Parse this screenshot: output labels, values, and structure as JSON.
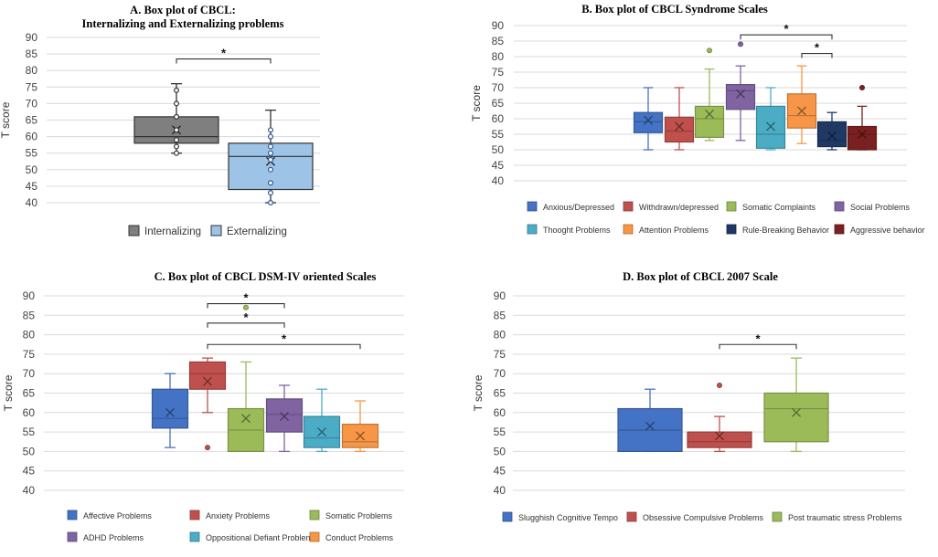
{
  "chart_data": [
    {
      "type": "box",
      "title_lines": [
        "A. Box plot of CBCL:",
        "Internalizing and Externalizing problems"
      ],
      "ylabel": "T score",
      "ylim": [
        40,
        90
      ],
      "yticks": [
        40,
        45,
        50,
        55,
        60,
        65,
        70,
        75,
        80,
        85,
        90
      ],
      "series": [
        {
          "name": "Internalizing",
          "color": "#7f7f7f",
          "whisker_color": "#333333",
          "min": 55,
          "q1": 58,
          "median": 60,
          "q3": 66,
          "max": 76,
          "mean": 62,
          "points": [
            55,
            57,
            59,
            62,
            66,
            70,
            74
          ],
          "outliers": []
        },
        {
          "name": "Externalizing",
          "color": "#9dc3e6",
          "whisker_color": "#333333",
          "min": 40,
          "q1": 44,
          "median": 54,
          "q3": 58,
          "max": 68,
          "mean": 52.5,
          "points": [
            40,
            43,
            46,
            50,
            53,
            55,
            57,
            60,
            62
          ],
          "outliers": []
        }
      ],
      "significance": [
        {
          "from": 0,
          "to": 1,
          "y": 83.5,
          "label": "*"
        }
      ]
    },
    {
      "type": "box",
      "title_lines": [
        "B. Box plot of CBCL Syndrome Scales"
      ],
      "ylabel": "T score",
      "ylim": [
        40,
        90
      ],
      "yticks": [
        40,
        45,
        50,
        55,
        60,
        65,
        70,
        75,
        80,
        85,
        90
      ],
      "series": [
        {
          "name": "Anxious/Depressed",
          "color": "#4472c4",
          "whisker_color": "#4472c4",
          "min": 50,
          "q1": 55.5,
          "median": 59,
          "q3": 62,
          "max": 70,
          "mean": 59.5,
          "points": [],
          "outliers": []
        },
        {
          "name": "Withdrawn/depressed",
          "color": "#c0504d",
          "whisker_color": "#c0504d",
          "min": 50,
          "q1": 52.5,
          "median": 56,
          "q3": 60.5,
          "max": 70,
          "mean": 57.5,
          "points": [],
          "outliers": []
        },
        {
          "name": "Somatic Complaints",
          "color": "#9bbb59",
          "whisker_color": "#9bbb59",
          "min": 53,
          "q1": 54,
          "median": 60,
          "q3": 64,
          "max": 76,
          "mean": 61.5,
          "points": [],
          "outliers": [
            82
          ]
        },
        {
          "name": "Social Problems",
          "color": "#8064a2",
          "whisker_color": "#8064a2",
          "min": 53,
          "q1": 63,
          "median": 69,
          "q3": 71,
          "max": 77,
          "mean": 68,
          "points": [],
          "outliers": [
            84
          ]
        },
        {
          "name": "Thooght Problems",
          "color": "#4bacc6",
          "whisker_color": "#4bacc6",
          "min": 50,
          "q1": 50.5,
          "median": 55,
          "q3": 64,
          "max": 70,
          "mean": 57.5,
          "points": [],
          "outliers": []
        },
        {
          "name": "Attention Problems",
          "color": "#f79646",
          "whisker_color": "#f79646",
          "min": 52,
          "q1": 57,
          "median": 61,
          "q3": 68,
          "max": 77,
          "mean": 62.5,
          "points": [],
          "outliers": []
        },
        {
          "name": "Rule-Breaking Behavior",
          "color": "#1f3864",
          "whisker_color": "#1f3864",
          "min": 50,
          "q1": 51,
          "median": 53,
          "q3": 59,
          "max": 62,
          "mean": 54.5,
          "points": [],
          "outliers": []
        },
        {
          "name": "Aggressive behavior",
          "color": "#7b2020",
          "whisker_color": "#7b2020",
          "min": 50,
          "q1": 50,
          "median": 55,
          "q3": 57.5,
          "max": 64,
          "mean": 55,
          "points": [],
          "outliers": [
            70
          ]
        }
      ],
      "significance": [
        {
          "from": 3,
          "to": 6,
          "y": 87,
          "label": "*"
        },
        {
          "from": 5,
          "to": 6,
          "y": 81,
          "label": "*"
        }
      ]
    },
    {
      "type": "box",
      "title_lines": [
        "C. Box plot of CBCL DSM-IV oriented Scales"
      ],
      "ylabel": "T score",
      "ylim": [
        40,
        90
      ],
      "yticks": [
        40,
        45,
        50,
        55,
        60,
        65,
        70,
        75,
        80,
        85,
        90
      ],
      "series": [
        {
          "name": "Affective Problems",
          "color": "#4472c4",
          "whisker_color": "#4472c4",
          "min": 51,
          "q1": 56,
          "median": 58.5,
          "q3": 66,
          "max": 70,
          "mean": 60,
          "points": [],
          "outliers": []
        },
        {
          "name": "Anxiety Problems",
          "color": "#c0504d",
          "whisker_color": "#c0504d",
          "min": 60,
          "q1": 66,
          "median": 70,
          "q3": 73,
          "max": 74,
          "mean": 68,
          "points": [],
          "outliers": [
            51
          ]
        },
        {
          "name": "Somatic Problems",
          "color": "#9bbb59",
          "whisker_color": "#9bbb59",
          "min": 50,
          "q1": 50,
          "median": 55.5,
          "q3": 61,
          "max": 73,
          "mean": 58.5,
          "points": [],
          "outliers": [
            87
          ]
        },
        {
          "name": "ADHD Problems",
          "color": "#8064a2",
          "whisker_color": "#8064a2",
          "min": 50,
          "q1": 55,
          "median": 59.5,
          "q3": 63.5,
          "max": 67,
          "mean": 59,
          "points": [],
          "outliers": []
        },
        {
          "name": "Oppositional Defiant Problems",
          "color": "#4bacc6",
          "whisker_color": "#4bacc6",
          "min": 50,
          "q1": 51,
          "median": 53.5,
          "q3": 59,
          "max": 66,
          "mean": 55,
          "points": [],
          "outliers": []
        },
        {
          "name": "Conduct Problems",
          "color": "#f79646",
          "whisker_color": "#f79646",
          "min": 50,
          "q1": 51,
          "median": 52.5,
          "q3": 57,
          "max": 63,
          "mean": 54,
          "points": [],
          "outliers": []
        }
      ],
      "significance": [
        {
          "from": 1,
          "to": 3,
          "y": 88,
          "label": "*"
        },
        {
          "from": 1,
          "to": 3,
          "y": 83,
          "label": "*"
        },
        {
          "from": 1,
          "to": 5,
          "y": 77.5,
          "label": "*"
        }
      ]
    },
    {
      "type": "box",
      "title_lines": [
        "D. Box plot of CBCL 2007 Scale"
      ],
      "ylabel": "T score",
      "ylim": [
        40,
        90
      ],
      "yticks": [
        40,
        45,
        50,
        55,
        60,
        65,
        70,
        75,
        80,
        85,
        90
      ],
      "series": [
        {
          "name": "Slugghish Cognitive Tempo",
          "color": "#4472c4",
          "whisker_color": "#4472c4",
          "min": 50,
          "q1": 50,
          "median": 55.5,
          "q3": 61,
          "max": 66,
          "mean": 56.5,
          "points": [],
          "outliers": []
        },
        {
          "name": "Obsessive Compulsive Problems",
          "color": "#c0504d",
          "whisker_color": "#c0504d",
          "min": 50,
          "q1": 51,
          "median": 52.5,
          "q3": 55,
          "max": 59,
          "mean": 54,
          "points": [],
          "outliers": [
            67
          ]
        },
        {
          "name": "Post traumatic stress Problems",
          "color": "#9bbb59",
          "whisker_color": "#9bbb59",
          "min": 50,
          "q1": 52.5,
          "median": 61,
          "q3": 65,
          "max": 74,
          "mean": 60,
          "points": [],
          "outliers": []
        }
      ],
      "significance": [
        {
          "from": 1,
          "to": 2,
          "y": 77.5,
          "label": "*"
        }
      ]
    }
  ]
}
